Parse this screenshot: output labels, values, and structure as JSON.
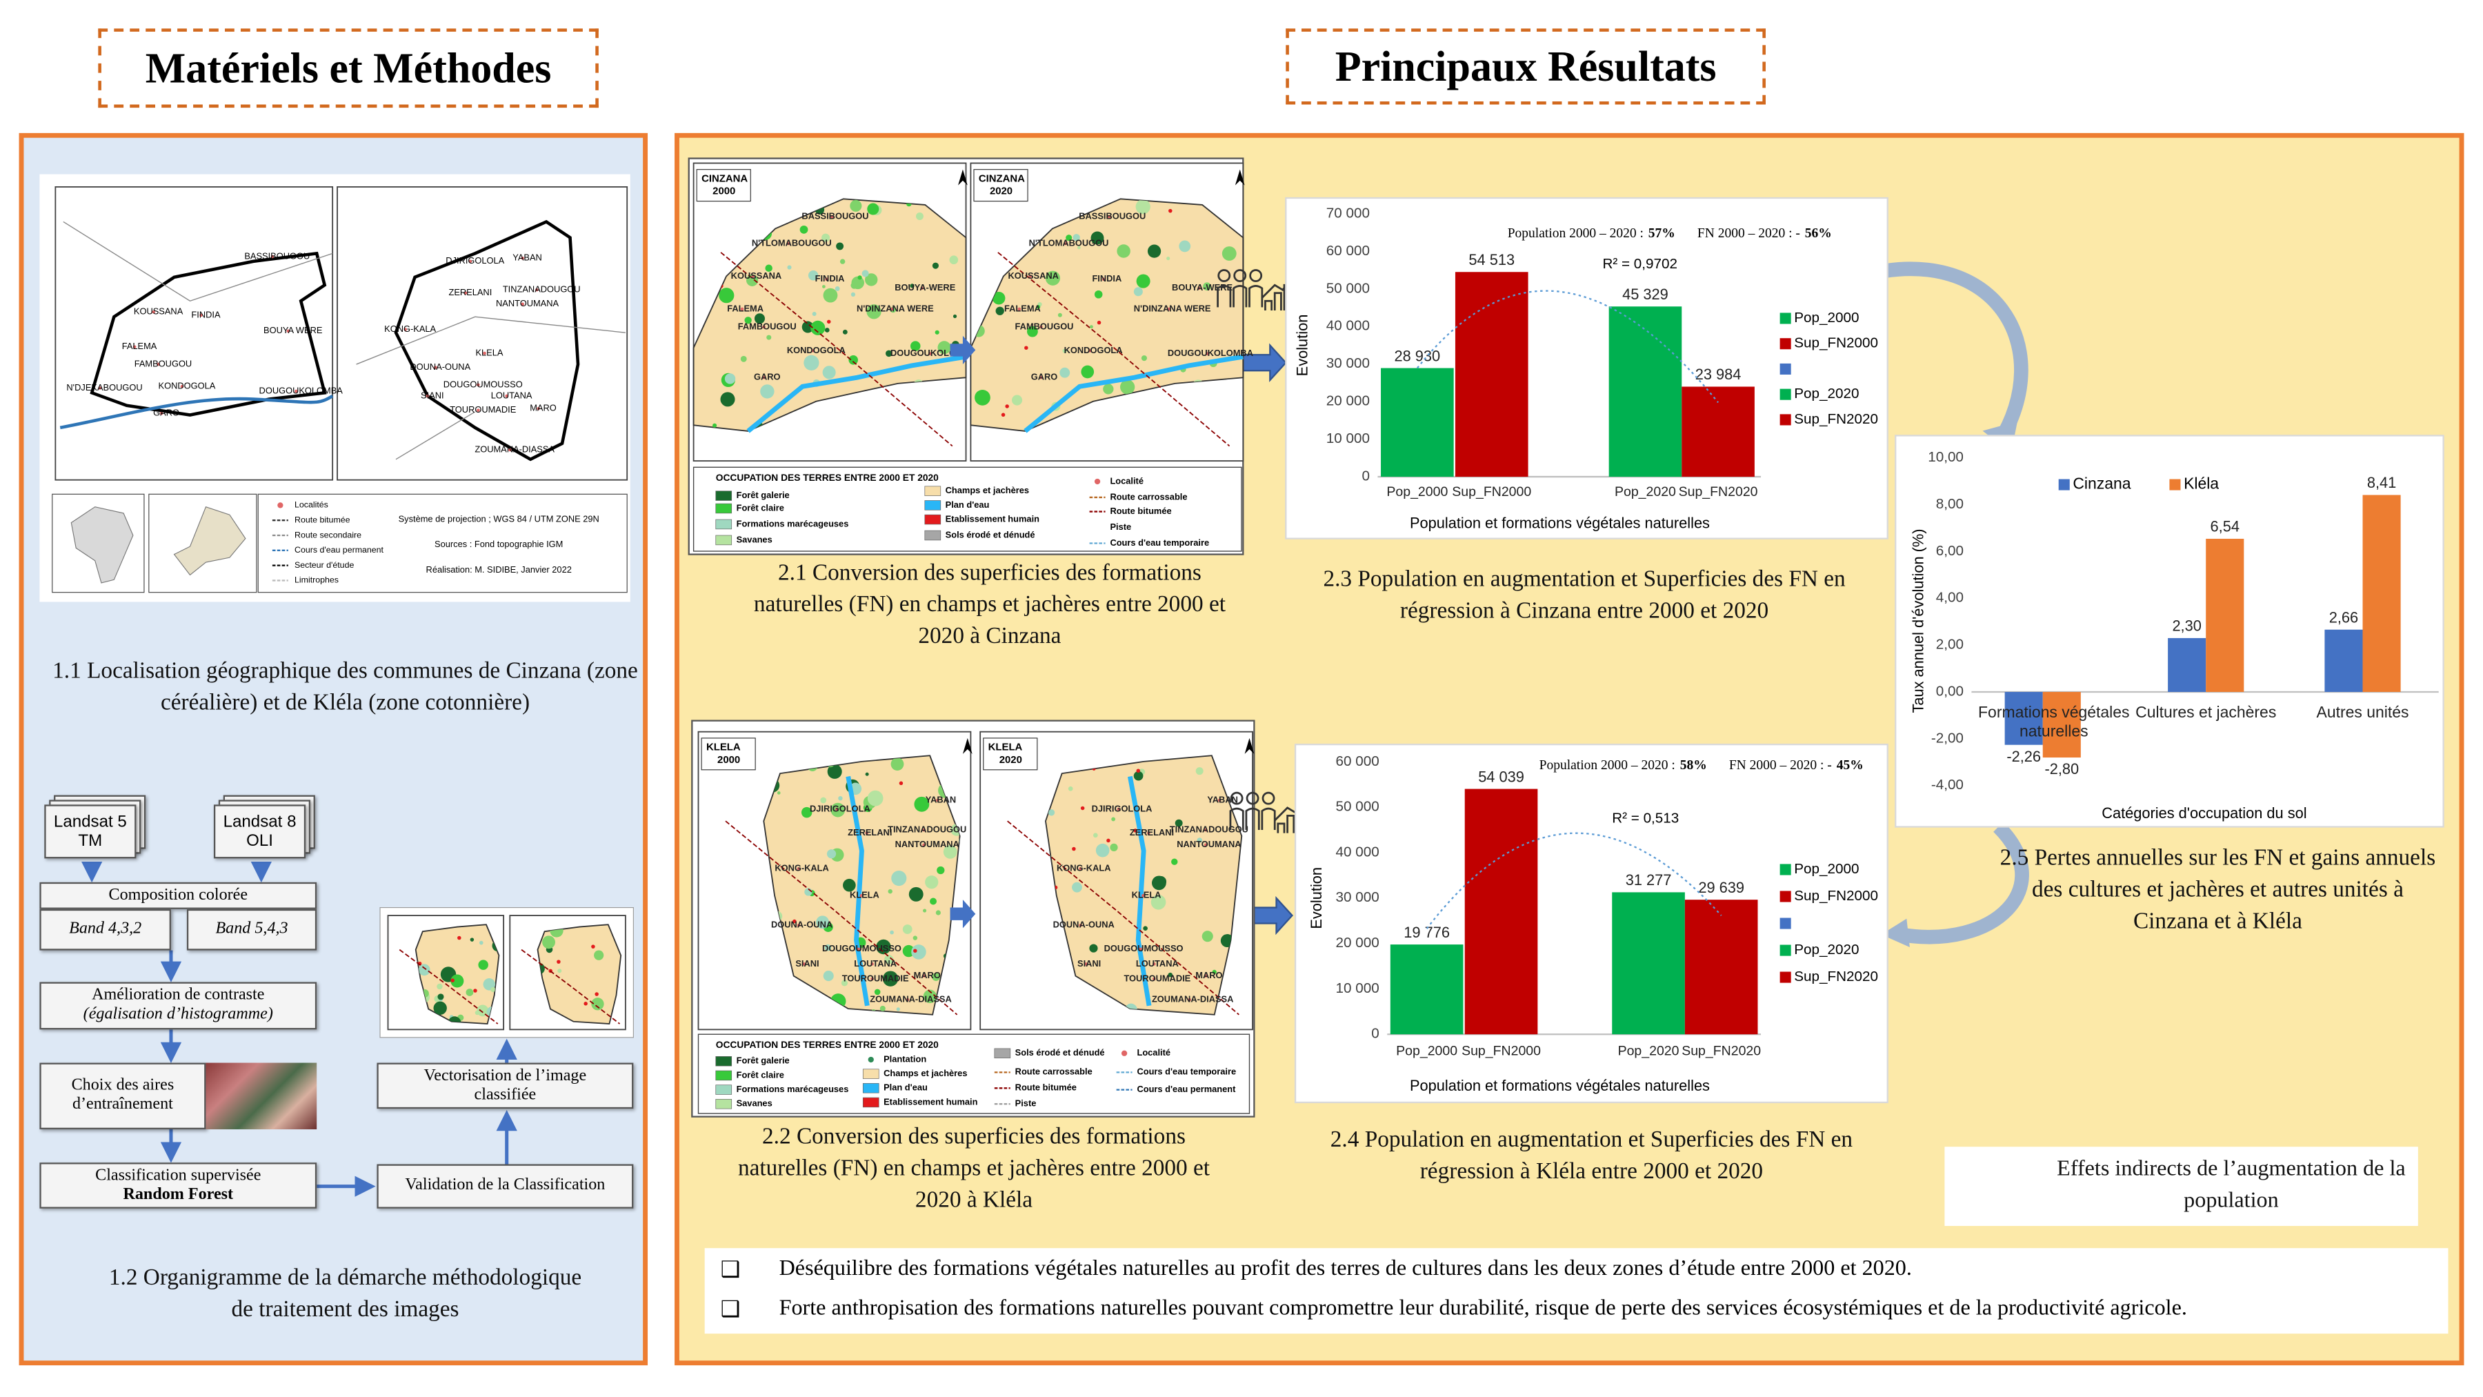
{
  "headers": {
    "methods": "Matériels et Méthodes",
    "results": "Principaux  Résultats"
  },
  "location_map": {
    "towns_cinzana": [
      "BASSIBOUGOU",
      "KOUSSANA",
      "FINDIA",
      "BOUYA WERE",
      "FALEMA",
      "FAMBOUGOU",
      "N'DJEKABOUGOU",
      "KONDOGOLA",
      "DOUGOUKOLOMBA",
      "GARO"
    ],
    "towns_klela": [
      "DJIRIGOLOLA",
      "YABAN",
      "ZERELANI",
      "TINZANADOUGOU",
      "NANTOUMANA",
      "KONG-KALA",
      "KLELA",
      "DOUNA-OUNA",
      "DOUGOUMOUSSO",
      "SIANI",
      "LOUTANA",
      "TOUROUMADIE",
      "MARO",
      "ZOUMANA-DIASSA"
    ],
    "legend": [
      {
        "label": "Localités",
        "kind": "point",
        "color": "#e06666"
      },
      {
        "label": "Route bitumée",
        "kind": "line",
        "color": "#333333"
      },
      {
        "label": "Route secondaire",
        "kind": "line",
        "color": "#888888"
      },
      {
        "label": "Cours d'eau permanent",
        "kind": "line",
        "color": "#2e75b6"
      },
      {
        "label": "Secteur d'étude",
        "kind": "line",
        "color": "#000000"
      },
      {
        "label": "Limitrophes",
        "kind": "line",
        "color": "#bbbbbb"
      }
    ],
    "info": [
      "Système de projection ; WGS 84 / UTM ZONE 29N",
      "Sources : Fond topographie IGM",
      "Réalisation: M. SIDIBE, Janvier 2022"
    ]
  },
  "flowchart": {
    "landsat5": "Landsat 5 TM",
    "landsat8": "Landsat 8 OLI",
    "composition": "Composition colorée",
    "band1": "Band 4,3,2",
    "band2": "Band 5,4,3",
    "contrast": "Amélioration de contraste",
    "contrast_note": "(égalisation d’histogramme)",
    "training": "Choix des aires d’entraînement",
    "classification": "Classification supervisée",
    "classifier": "Random Forest",
    "validation": "Validation de la Classification",
    "vectorisation": "Vectorisation de l’image classifiée"
  },
  "captions": {
    "c11": "1.1 Localisation géographique des communes de Cinzana (zone céréalière) et de Kléla (zone cotonnière)",
    "c12": "1.2 Organigramme de la démarche méthodologique de traitement des images",
    "c21": "2.1 Conversion des superficies des formations naturelles (FN) en champs et jachères entre 2000 et 2020 à Cinzana",
    "c22": "2.2 Conversion des superficies des formations naturelles (FN) en champs et jachères entre 2000 et 2020 à Kléla",
    "c23": "2.3 Population en augmentation et Superficies des FN  en régression à Cinzana entre 2000 et 2020",
    "c24": "2.4 Population en augmentation et Superficies des FN en régression à Kléla entre 2000 et 2020",
    "c25": "2.5 Pertes annuelles sur les FN et gains annuels des cultures et jachères et autres unités à Cinzana et à Kléla"
  },
  "maps": {
    "cinzana": {
      "name": "CINZANA",
      "years": [
        "2000",
        "2020"
      ],
      "towns": [
        "BASSIBOUGOU",
        "N'TLOMABOUGOU",
        "KOUSSANA",
        "FINDIA",
        "BOUYA-WERE",
        "N'DINZANA WERE",
        "FALEMA",
        "FAMBOUGOU",
        "KONDOGOLA",
        "DOUGOUKOLOMBA",
        "GARO"
      ],
      "legend_title": "OCCUPATION DES TERRES ENTRE 2000 ET 2020",
      "legend": [
        {
          "label": "Forêt galerie",
          "kind": "fill",
          "color": "#1a6b2e"
        },
        {
          "label": "Forêt claire",
          "kind": "fill",
          "color": "#38c93a"
        },
        {
          "label": "Formations marécageuses",
          "kind": "fill",
          "color": "#9fd8c0"
        },
        {
          "label": "Savanes",
          "kind": "fill",
          "color": "#b5e3a0"
        },
        {
          "label": "Champs et jachères",
          "kind": "fill",
          "color": "#f7deaa"
        },
        {
          "label": "Plan d'eau",
          "kind": "fill",
          "color": "#29b6f6"
        },
        {
          "label": "Etablissement humain",
          "kind": "fill",
          "color": "#e31a1c"
        },
        {
          "label": "Sols érodé et dénudé",
          "kind": "fill",
          "color": "#a6a6a6"
        },
        {
          "label": "Localité",
          "kind": "point",
          "color": "#e06666"
        },
        {
          "label": "Route carrossable",
          "kind": "line",
          "color": "#b5651d"
        },
        {
          "label": "Route bitumée",
          "kind": "line",
          "color": "#8b0000"
        },
        {
          "label": "Piste",
          "kind": "line",
          "color": "#ffffff"
        },
        {
          "label": "Cours d'eau temporaire",
          "kind": "line",
          "color": "#5fa8d3"
        }
      ]
    },
    "klela": {
      "name": "KLELA",
      "years": [
        "2000",
        "2020"
      ],
      "towns": [
        "DJIRIGOLOLA",
        "YABAN",
        "ZERELANI",
        "TINZANADOUGOU",
        "NANTOUMANA",
        "KONG-KALA",
        "KLELA",
        "DOUNA-OUNA",
        "DOUGOUMOUSSO",
        "SIANI",
        "LOUTANA",
        "TOUROUMADIE",
        "MARO",
        "ZOUMANA-DIASSA"
      ],
      "legend_title": "OCCUPATION DES TERRES ENTRE 2000 ET 2020",
      "legend": [
        {
          "label": "Forêt galerie",
          "kind": "fill",
          "color": "#1a6b2e"
        },
        {
          "label": "Forêt claire",
          "kind": "fill",
          "color": "#38c93a"
        },
        {
          "label": "Formations marécageuses",
          "kind": "fill",
          "color": "#9fd8c0"
        },
        {
          "label": "Savanes",
          "kind": "fill",
          "color": "#b5e3a0"
        },
        {
          "label": "Plantation",
          "kind": "point",
          "color": "#2e8b57"
        },
        {
          "label": "Champs et jachères",
          "kind": "fill",
          "color": "#f7deaa"
        },
        {
          "label": "Plan d'eau",
          "kind": "fill",
          "color": "#29b6f6"
        },
        {
          "label": "Etablissement humain",
          "kind": "fill",
          "color": "#e31a1c"
        },
        {
          "label": "Sols érodé et dénudé",
          "kind": "fill",
          "color": "#a6a6a6"
        },
        {
          "label": "Route carrossable",
          "kind": "line",
          "color": "#b5651d"
        },
        {
          "label": "Route bitumée",
          "kind": "line",
          "color": "#8b0000"
        },
        {
          "label": "Piste",
          "kind": "line",
          "color": "#999999"
        },
        {
          "label": "Localité",
          "kind": "point",
          "color": "#e06666"
        },
        {
          "label": "Cours d'eau temporaire",
          "kind": "line",
          "color": "#5fa8d3"
        },
        {
          "label": "Cours d'eau permanent",
          "kind": "line",
          "color": "#2e75b6"
        }
      ]
    }
  },
  "effects_box": "Effets indirects de l’augmentation de la population",
  "conclusions": [
    "Déséquilibre des formations végétales naturelles au profit des terres de cultures dans les deux zones d’étude entre 2000 et 2020.",
    "Forte anthropisation des formations naturelles pouvant compromettre leur durabilité, risque de perte des services écosystémiques et de la productivité agricole."
  ],
  "chart_data": [
    {
      "type": "bar",
      "annotation": [
        "Population 2000 – 2020 :",
        "57%",
        "FN 2000 – 2020 : -",
        "56%"
      ],
      "r2": "R² = 0,9702",
      "categories": [
        "Pop_2000",
        "Sup_FN2000",
        "Pop_2020",
        "Sup_FN2020"
      ],
      "series": [
        {
          "name": "Pop_2000",
          "color": "#00b050",
          "values": [
            28930,
            null,
            null,
            null
          ],
          "value_labels": [
            "28 930",
            null,
            null,
            null
          ]
        },
        {
          "name": "Sup_FN2000",
          "color": "#c00000",
          "values": [
            null,
            54513,
            null,
            null
          ],
          "value_labels": [
            null,
            "54 513",
            null,
            null
          ]
        },
        {
          "name": "Pop_2020",
          "color": "#00b050",
          "values": [
            null,
            null,
            45329,
            null
          ],
          "value_labels": [
            null,
            null,
            "45 329",
            null
          ]
        },
        {
          "name": "Sup_FN2020",
          "color": "#c00000",
          "values": [
            null,
            null,
            null,
            23984
          ],
          "value_labels": [
            null,
            null,
            null,
            "23 984"
          ]
        }
      ],
      "xlabel": "Population et formations végétales naturelles",
      "ylabel": "Evolution",
      "ylim": [
        0,
        70000
      ],
      "yticks": [
        0,
        {
          "value": 10000,
          "label": "10 000"
        },
        {
          "value": 20000,
          "label": "20 000"
        },
        {
          "value": 30000,
          "label": "30 000"
        },
        {
          "value": 40000,
          "label": "40 000"
        },
        {
          "value": 50000,
          "label": "50 000"
        },
        {
          "value": 60000,
          "label": "60 000"
        },
        {
          "value": 70000,
          "label": "70 000"
        }
      ],
      "legend": "right"
    },
    {
      "type": "bar",
      "annotation": [
        "Population 2000 – 2020 :",
        "58%",
        "FN 2000 – 2020 : -",
        "45%"
      ],
      "r2": "R² = 0,513",
      "categories": [
        "Pop_2000",
        "Sup_FN2000",
        "Pop_2020",
        "Sup_FN2020"
      ],
      "series": [
        {
          "name": "Pop_2000",
          "color": "#00b050",
          "values": [
            19776,
            null,
            null,
            null
          ],
          "value_labels": [
            "19 776",
            null,
            null,
            null
          ]
        },
        {
          "name": "Sup_FN2000",
          "color": "#c00000",
          "values": [
            null,
            54039,
            null,
            null
          ],
          "value_labels": [
            null,
            "54 039",
            null,
            null
          ]
        },
        {
          "name": "Pop_2020",
          "color": "#00b050",
          "values": [
            null,
            null,
            31277,
            null
          ],
          "value_labels": [
            null,
            null,
            "31 277",
            null
          ]
        },
        {
          "name": "Sup_FN2020",
          "color": "#c00000",
          "values": [
            null,
            null,
            null,
            29639
          ],
          "value_labels": [
            null,
            null,
            null,
            "29 639"
          ]
        }
      ],
      "xlabel": "Population et formations végétales naturelles",
      "ylabel": "Evolution",
      "ylim": [
        0,
        60000
      ],
      "yticks": [
        0,
        {
          "value": 10000,
          "label": "10 000"
        },
        {
          "value": 20000,
          "label": "20 000"
        },
        {
          "value": 30000,
          "label": "30 000"
        },
        {
          "value": 40000,
          "label": "40 000"
        },
        {
          "value": 50000,
          "label": "50 000"
        },
        {
          "value": 60000,
          "label": "60 000"
        }
      ],
      "legend": "right"
    },
    {
      "type": "bar",
      "categories": [
        "Formations végétales naturelles",
        "Cultures et jachères",
        "Autres unités"
      ],
      "series": [
        {
          "name": "Cinzana",
          "color": "#4472c4",
          "values": [
            -2.26,
            2.3,
            2.66
          ],
          "value_labels": [
            "-2,26",
            "2,30",
            "2,66"
          ]
        },
        {
          "name": "Kléla",
          "color": "#ed7d31",
          "values": [
            -2.8,
            6.54,
            8.41
          ],
          "value_labels": [
            "-2,80",
            "6,54",
            "8,41"
          ]
        }
      ],
      "xlabel": "Catégories d'occupation du sol",
      "ylabel": "Taux annuel d'évolution (%)",
      "ylim": [
        -4,
        10
      ],
      "yticks": [
        {
          "value": -4,
          "label": "-4,00"
        },
        {
          "value": -2,
          "label": "-2,00"
        },
        {
          "value": 0,
          "label": "0,00"
        },
        {
          "value": 2,
          "label": "2,00"
        },
        {
          "value": 4,
          "label": "4,00"
        },
        {
          "value": 6,
          "label": "6,00"
        },
        {
          "value": 8,
          "label": "8,00"
        },
        {
          "value": 10,
          "label": "10,00"
        }
      ],
      "legend": "top"
    }
  ]
}
